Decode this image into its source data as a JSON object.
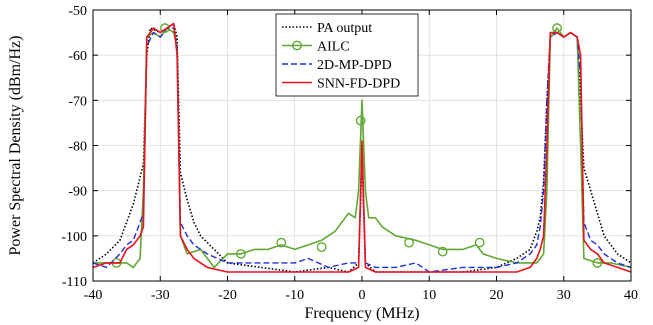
{
  "chart_data": {
    "type": "line",
    "xlabel": "Frequency (MHz)",
    "ylabel": "Power Spectral Density (dBm/Hz)",
    "xlim": [
      -40,
      40
    ],
    "ylim": [
      -110,
      -50
    ],
    "xticks": [
      "-40",
      "-30",
      "-20",
      "-10",
      "0",
      "10",
      "20",
      "30",
      "40"
    ],
    "yticks": [
      "-110",
      "-100",
      "-90",
      "-80",
      "-70",
      "-60",
      "-50"
    ],
    "grid": true,
    "legend_position": "top-center",
    "series": [
      {
        "name": "PA output",
        "color": "#000000",
        "style": "dotted",
        "marker": "none",
        "points": [
          [
            -40,
            -106
          ],
          [
            -38,
            -104
          ],
          [
            -36,
            -101
          ],
          [
            -35,
            -97
          ],
          [
            -34,
            -93
          ],
          [
            -33,
            -87
          ],
          [
            -32.5,
            -84
          ],
          [
            -32,
            -60
          ],
          [
            -31.5,
            -54
          ],
          [
            -30,
            -55
          ],
          [
            -29,
            -54
          ],
          [
            -28,
            -53
          ],
          [
            -27.5,
            -56
          ],
          [
            -27,
            -86
          ],
          [
            -26,
            -92
          ],
          [
            -25,
            -97
          ],
          [
            -24,
            -100
          ],
          [
            -22,
            -103
          ],
          [
            -20,
            -106
          ],
          [
            -15,
            -107
          ],
          [
            -10,
            -108
          ],
          [
            -5,
            -107
          ],
          [
            -2,
            -108
          ],
          [
            -0.5,
            -106
          ],
          [
            0,
            -82
          ],
          [
            0.5,
            -106
          ],
          [
            2,
            -108
          ],
          [
            5,
            -108
          ],
          [
            10,
            -108
          ],
          [
            15,
            -108
          ],
          [
            20,
            -107
          ],
          [
            23,
            -105
          ],
          [
            25,
            -103
          ],
          [
            26,
            -99
          ],
          [
            26.5,
            -96
          ],
          [
            27,
            -88
          ],
          [
            27.5,
            -70
          ],
          [
            28,
            -56
          ],
          [
            29,
            -55
          ],
          [
            30,
            -56
          ],
          [
            31,
            -55
          ],
          [
            32,
            -56
          ],
          [
            32.5,
            -70
          ],
          [
            33,
            -85
          ],
          [
            34,
            -90
          ],
          [
            35,
            -95
          ],
          [
            36,
            -100
          ],
          [
            38,
            -104
          ],
          [
            40,
            -106
          ]
        ]
      },
      {
        "name": "AILC",
        "color": "#5fa832",
        "style": "solid",
        "marker": "circle",
        "points": [
          [
            -40,
            -106
          ],
          [
            -37,
            -106
          ],
          [
            -35,
            -106
          ],
          [
            -34,
            -107
          ],
          [
            -33,
            -105
          ],
          [
            -32.5,
            -90
          ],
          [
            -32,
            -56
          ],
          [
            -31,
            -55
          ],
          [
            -30,
            -56
          ],
          [
            -29,
            -54
          ],
          [
            -28,
            -55
          ],
          [
            -27.5,
            -58
          ],
          [
            -27,
            -100
          ],
          [
            -26,
            -104
          ],
          [
            -24,
            -103
          ],
          [
            -22,
            -107
          ],
          [
            -20,
            -104
          ],
          [
            -18,
            -104
          ],
          [
            -16,
            -103
          ],
          [
            -14,
            -103
          ],
          [
            -12,
            -102
          ],
          [
            -10,
            -103
          ],
          [
            -8,
            -102
          ],
          [
            -6,
            -101
          ],
          [
            -4,
            -99
          ],
          [
            -3,
            -97
          ],
          [
            -2,
            -95
          ],
          [
            -1,
            -96
          ],
          [
            -0.5,
            -90
          ],
          [
            0,
            -70
          ],
          [
            0.5,
            -90
          ],
          [
            1,
            -96
          ],
          [
            2,
            -96
          ],
          [
            3,
            -98
          ],
          [
            5,
            -100
          ],
          [
            8,
            -101
          ],
          [
            10,
            -102
          ],
          [
            12,
            -103
          ],
          [
            15,
            -103
          ],
          [
            17,
            -102
          ],
          [
            18,
            -104
          ],
          [
            20,
            -105
          ],
          [
            23,
            -106
          ],
          [
            25,
            -106
          ],
          [
            26,
            -106
          ],
          [
            27,
            -104
          ],
          [
            27.5,
            -90
          ],
          [
            28,
            -56
          ],
          [
            29,
            -54
          ],
          [
            30,
            -56
          ],
          [
            31,
            -55
          ],
          [
            32,
            -56
          ],
          [
            32.5,
            -80
          ],
          [
            33,
            -105
          ],
          [
            35,
            -106
          ],
          [
            37,
            -106
          ],
          [
            40,
            -107
          ]
        ],
        "marker_points": [
          [
            -36.5,
            -106
          ],
          [
            -29.3,
            -54
          ],
          [
            -18,
            -104
          ],
          [
            -12,
            -101.5
          ],
          [
            -6,
            -102.5
          ],
          [
            -0.2,
            -74.5
          ],
          [
            7,
            -101.5
          ],
          [
            12,
            -103.5
          ],
          [
            17.5,
            -101.5
          ],
          [
            29,
            -54
          ],
          [
            35,
            -106
          ]
        ]
      },
      {
        "name": "2D-MP-DPD",
        "color": "#1f2fd6",
        "style": "dashed",
        "marker": "none",
        "points": [
          [
            -40,
            -106
          ],
          [
            -38,
            -107
          ],
          [
            -36,
            -104
          ],
          [
            -35,
            -102
          ],
          [
            -34,
            -101
          ],
          [
            -33,
            -97
          ],
          [
            -32.5,
            -95
          ],
          [
            -32,
            -58
          ],
          [
            -31,
            -55
          ],
          [
            -30,
            -56
          ],
          [
            -29,
            -54
          ],
          [
            -28,
            -54
          ],
          [
            -27.5,
            -58
          ],
          [
            -27,
            -97
          ],
          [
            -26,
            -100
          ],
          [
            -25,
            -102
          ],
          [
            -23,
            -104
          ],
          [
            -20,
            -106
          ],
          [
            -15,
            -106
          ],
          [
            -10,
            -106
          ],
          [
            -8,
            -105
          ],
          [
            -5,
            -107
          ],
          [
            -2,
            -106
          ],
          [
            -0.5,
            -106
          ],
          [
            0,
            -80
          ],
          [
            0.5,
            -106
          ],
          [
            2,
            -107
          ],
          [
            5,
            -107
          ],
          [
            8,
            -106
          ],
          [
            10,
            -108
          ],
          [
            15,
            -107
          ],
          [
            20,
            -107
          ],
          [
            23,
            -106
          ],
          [
            25,
            -104
          ],
          [
            26,
            -102
          ],
          [
            26.5,
            -98
          ],
          [
            27,
            -90
          ],
          [
            27.5,
            -70
          ],
          [
            28,
            -56
          ],
          [
            29,
            -55
          ],
          [
            30,
            -56
          ],
          [
            31,
            -55
          ],
          [
            32,
            -56
          ],
          [
            32.5,
            -65
          ],
          [
            33,
            -97
          ],
          [
            34,
            -101
          ],
          [
            35,
            -102
          ],
          [
            36,
            -104
          ],
          [
            38,
            -106
          ],
          [
            40,
            -107
          ]
        ]
      },
      {
        "name": "SNN-FD-DPD",
        "color": "#e8111e",
        "style": "solid",
        "marker": "none",
        "points": [
          [
            -40,
            -107
          ],
          [
            -38,
            -106
          ],
          [
            -36,
            -106
          ],
          [
            -35,
            -103
          ],
          [
            -34,
            -102
          ],
          [
            -33,
            -100
          ],
          [
            -32.5,
            -98
          ],
          [
            -32,
            -56
          ],
          [
            -31,
            -54
          ],
          [
            -30,
            -55
          ],
          [
            -29,
            -54
          ],
          [
            -28,
            -53
          ],
          [
            -27.5,
            -60
          ],
          [
            -27,
            -100
          ],
          [
            -26,
            -103
          ],
          [
            -25,
            -105
          ],
          [
            -23,
            -107
          ],
          [
            -20,
            -108
          ],
          [
            -15,
            -108
          ],
          [
            -10,
            -108
          ],
          [
            -5,
            -108
          ],
          [
            -2,
            -108
          ],
          [
            -0.5,
            -107
          ],
          [
            0,
            -79
          ],
          [
            0.5,
            -107
          ],
          [
            2,
            -108
          ],
          [
            5,
            -108
          ],
          [
            10,
            -108
          ],
          [
            15,
            -108
          ],
          [
            20,
            -108
          ],
          [
            23,
            -108
          ],
          [
            25,
            -107
          ],
          [
            26,
            -105
          ],
          [
            26.5,
            -103
          ],
          [
            27,
            -100
          ],
          [
            27.5,
            -80
          ],
          [
            28,
            -55
          ],
          [
            29,
            -55
          ],
          [
            30,
            -56
          ],
          [
            31,
            -55
          ],
          [
            32,
            -56
          ],
          [
            32.5,
            -60
          ],
          [
            33,
            -101
          ],
          [
            34,
            -103
          ],
          [
            35,
            -104
          ],
          [
            36,
            -106
          ],
          [
            38,
            -107
          ],
          [
            40,
            -108
          ]
        ]
      }
    ]
  }
}
